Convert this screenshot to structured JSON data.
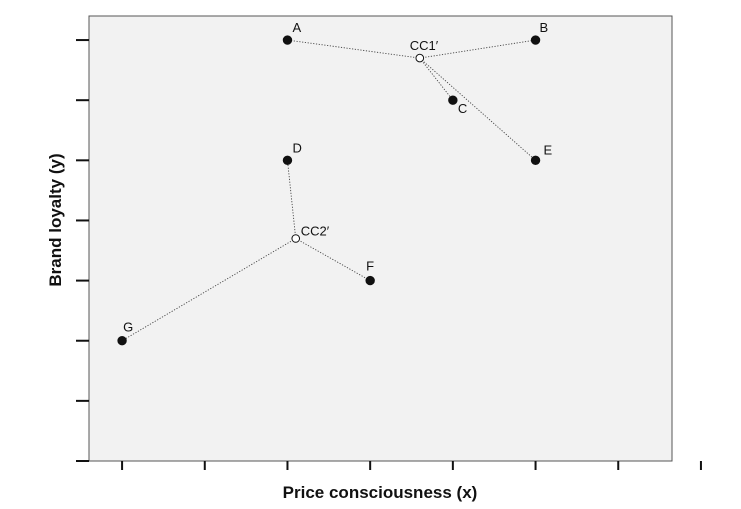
{
  "chart_data": {
    "type": "scatter",
    "xlabel": "Price consciousness (x)",
    "ylabel": "Brand loyalty (y)",
    "xlim": [
      0.6,
      7.65
    ],
    "ylim": [
      0.0,
      7.4
    ],
    "x_ticks": [
      1,
      2,
      3,
      4,
      5,
      6,
      7,
      8
    ],
    "y_ticks": [
      0,
      1,
      2,
      3,
      4,
      5,
      6,
      7
    ],
    "grid": false,
    "points": [
      {
        "label": "A",
        "x": 3.0,
        "y": 7.0,
        "hollow": false
      },
      {
        "label": "B",
        "x": 6.0,
        "y": 7.0,
        "hollow": false
      },
      {
        "label": "C",
        "x": 5.0,
        "y": 6.0,
        "hollow": false
      },
      {
        "label": "D",
        "x": 3.0,
        "y": 5.0,
        "hollow": false
      },
      {
        "label": "E",
        "x": 6.0,
        "y": 5.0,
        "hollow": false
      },
      {
        "label": "F",
        "x": 4.0,
        "y": 3.0,
        "hollow": false
      },
      {
        "label": "G",
        "x": 1.0,
        "y": 2.0,
        "hollow": false
      },
      {
        "label": "CC1′",
        "x": 4.6,
        "y": 6.7,
        "hollow": true
      },
      {
        "label": "CC2′",
        "x": 3.1,
        "y": 3.7,
        "hollow": true
      }
    ],
    "links": [
      [
        "CC1′",
        "A"
      ],
      [
        "CC1′",
        "B"
      ],
      [
        "CC1′",
        "C"
      ],
      [
        "CC1′",
        "E"
      ],
      [
        "CC2′",
        "D"
      ],
      [
        "CC2′",
        "F"
      ],
      [
        "CC2′",
        "G"
      ]
    ]
  }
}
